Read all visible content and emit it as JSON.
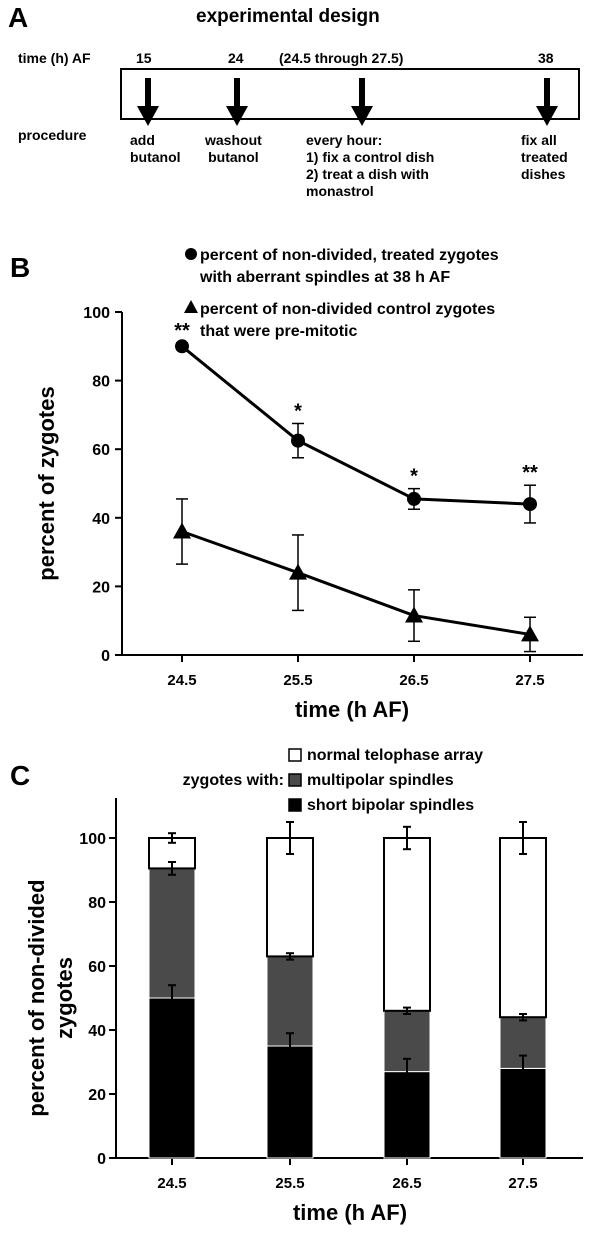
{
  "panelA": {
    "letter": "A",
    "title": "experimental design",
    "time_label": "time (h) AF",
    "procedure_label": "procedure",
    "times": [
      "15",
      "24",
      "(24.5 through 27.5)",
      "38"
    ],
    "steps": [
      [
        "add",
        "butanol"
      ],
      [
        "washout",
        "butanol"
      ],
      [
        "every hour:",
        "1) fix a control dish",
        "2) treat a dish with",
        "monastrol"
      ],
      [
        "fix all",
        "treated",
        "dishes"
      ]
    ]
  },
  "panelB": {
    "letter": "B"
  },
  "panelC": {
    "letter": "C",
    "legend_prefix": "zygotes with:"
  },
  "chart_data": [
    {
      "type": "line",
      "x": [
        24.5,
        25.5,
        26.5,
        27.5
      ],
      "xlabel": "time (h AF)",
      "ylabel": "percent of zygotes",
      "ylim": [
        0,
        100
      ],
      "yticks": [
        0,
        20,
        40,
        60,
        80,
        100
      ],
      "legend_placement": "top",
      "series": [
        {
          "name": "percent of non-divided, treated zygotes with aberrant spindles at 38 h AF",
          "marker": "circle",
          "values": [
            90,
            62.5,
            45.5,
            44
          ],
          "errors": [
            1,
            5,
            3,
            5.5
          ],
          "significance": [
            "**",
            "*",
            "*",
            "**"
          ]
        },
        {
          "name": "percent of non-divided control zygotes that were pre-mitotic",
          "marker": "triangle",
          "values": [
            36,
            24,
            11.5,
            6
          ],
          "errors": [
            9.5,
            11,
            7.5,
            5
          ]
        }
      ]
    },
    {
      "type": "bar",
      "stacked": true,
      "categories": [
        "24.5",
        "25.5",
        "26.5",
        "27.5"
      ],
      "xlabel": "time (h AF)",
      "ylabel": "percent of non-divided zygotes",
      "ylim": [
        0,
        110
      ],
      "yticks": [
        0,
        20,
        40,
        60,
        80,
        100
      ],
      "legend_placement": "top",
      "series": [
        {
          "name": "short bipolar spindles",
          "color": "#000000",
          "values": [
            50,
            35,
            27,
            28
          ],
          "errors": [
            4,
            4,
            4,
            4
          ]
        },
        {
          "name": "multipolar spindles",
          "color": "#4a4a4a",
          "values": [
            40.5,
            28,
            19,
            16
          ],
          "errors": [
            2,
            1,
            1,
            1
          ]
        },
        {
          "name": "normal telophase array",
          "color": "#ffffff",
          "values": [
            9.5,
            37,
            54,
            56
          ],
          "errors": [
            1.5,
            5,
            3.5,
            5
          ]
        }
      ]
    }
  ]
}
